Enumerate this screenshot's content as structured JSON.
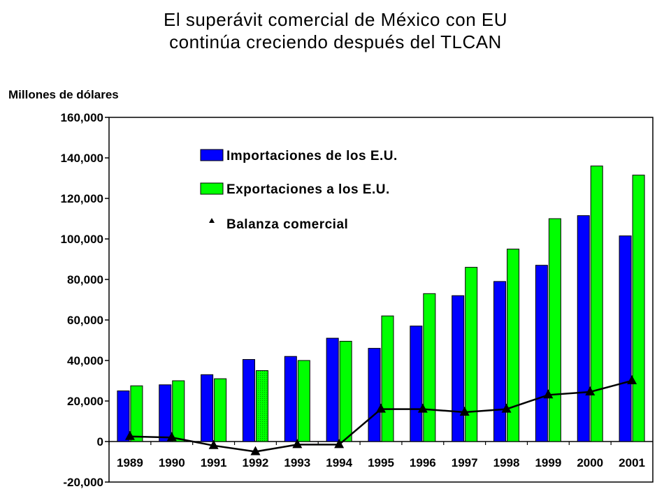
{
  "title_line1": "El superávit comercial de México con EU",
  "title_line2": "continúa creciendo después del TLCAN",
  "chart_data": {
    "type": "bar",
    "ylabel": "Millones de dólares",
    "xlabel": "",
    "ylim": [
      -20000,
      160000
    ],
    "yticks": [
      -20000,
      0,
      20000,
      40000,
      60000,
      80000,
      100000,
      120000,
      140000,
      160000
    ],
    "ytick_labels": [
      "-20,000",
      "0",
      "20,000",
      "40,000",
      "60,000",
      "80,000",
      "100,000",
      "120,000",
      "140,000",
      "160,000"
    ],
    "categories": [
      "1989",
      "1990",
      "1991",
      "1992",
      "1993",
      "1994",
      "1995",
      "1996",
      "1997",
      "1998",
      "1999",
      "2000",
      "2001"
    ],
    "series": [
      {
        "name": "Importaciones de los E.U.",
        "type": "bar",
        "color": "#0000ff",
        "values": [
          25000,
          28000,
          33000,
          40500,
          42000,
          51000,
          46000,
          57000,
          72000,
          79000,
          87000,
          111500,
          101500
        ]
      },
      {
        "name": "Exportaciones a los E.U.",
        "type": "bar",
        "color": "#00ff00",
        "values": [
          27500,
          30000,
          31000,
          35000,
          40000,
          49500,
          62000,
          73000,
          86000,
          95000,
          110000,
          136000,
          131500
        ]
      },
      {
        "name": "Balanza comercial",
        "type": "line",
        "color": "#000000",
        "marker": "triangle",
        "values": [
          2500,
          2000,
          -2000,
          -5000,
          -1500,
          -1500,
          16000,
          16000,
          14500,
          16000,
          23000,
          24500,
          30000
        ]
      }
    ],
    "legend_position": "top-left",
    "grid": false
  }
}
